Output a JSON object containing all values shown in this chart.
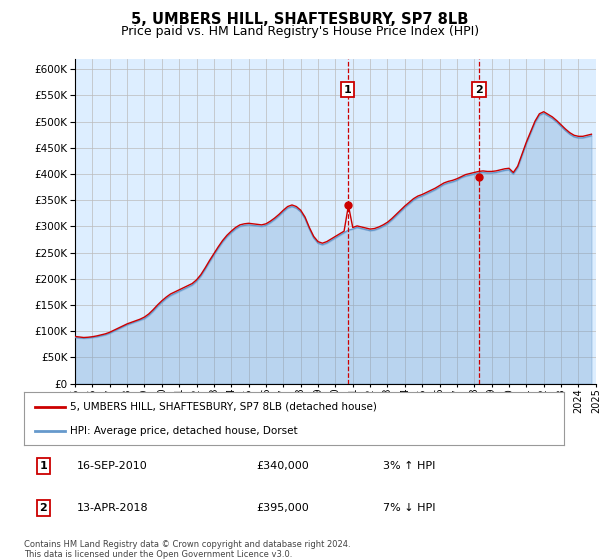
{
  "title": "5, UMBERS HILL, SHAFTESBURY, SP7 8LB",
  "subtitle": "Price paid vs. HM Land Registry's House Price Index (HPI)",
  "title_fontsize": 10.5,
  "subtitle_fontsize": 9.5,
  "ylim": [
    0,
    620000
  ],
  "yticks": [
    0,
    50000,
    100000,
    150000,
    200000,
    250000,
    300000,
    350000,
    400000,
    450000,
    500000,
    550000,
    600000
  ],
  "x_start_year": 1995,
  "x_end_year": 2025,
  "background_color": "#ffffff",
  "grid_color": "#bbbbbb",
  "plot_bg_color": "#ddeeff",
  "red_line_color": "#cc0000",
  "blue_line_color": "#6699cc",
  "sale1_year": 2010.71,
  "sale1_price": 340000,
  "sale2_year": 2018.28,
  "sale2_price": 395000,
  "legend_line1": "5, UMBERS HILL, SHAFTESBURY, SP7 8LB (detached house)",
  "legend_line2": "HPI: Average price, detached house, Dorset",
  "note1_label": "1",
  "note1_date": "16-SEP-2010",
  "note1_price": "£340,000",
  "note1_hpi": "3% ↑ HPI",
  "note2_label": "2",
  "note2_date": "13-APR-2018",
  "note2_price": "£395,000",
  "note2_hpi": "7% ↓ HPI",
  "copyright": "Contains HM Land Registry data © Crown copyright and database right 2024.\nThis data is licensed under the Open Government Licence v3.0.",
  "hpi_data_x": [
    1995.0,
    1995.25,
    1995.5,
    1995.75,
    1996.0,
    1996.25,
    1996.5,
    1996.75,
    1997.0,
    1997.25,
    1997.5,
    1997.75,
    1998.0,
    1998.25,
    1998.5,
    1998.75,
    1999.0,
    1999.25,
    1999.5,
    1999.75,
    2000.0,
    2000.25,
    2000.5,
    2000.75,
    2001.0,
    2001.25,
    2001.5,
    2001.75,
    2002.0,
    2002.25,
    2002.5,
    2002.75,
    2003.0,
    2003.25,
    2003.5,
    2003.75,
    2004.0,
    2004.25,
    2004.5,
    2004.75,
    2005.0,
    2005.25,
    2005.5,
    2005.75,
    2006.0,
    2006.25,
    2006.5,
    2006.75,
    2007.0,
    2007.25,
    2007.5,
    2007.75,
    2008.0,
    2008.25,
    2008.5,
    2008.75,
    2009.0,
    2009.25,
    2009.5,
    2009.75,
    2010.0,
    2010.25,
    2010.5,
    2010.75,
    2011.0,
    2011.25,
    2011.5,
    2011.75,
    2012.0,
    2012.25,
    2012.5,
    2012.75,
    2013.0,
    2013.25,
    2013.5,
    2013.75,
    2014.0,
    2014.25,
    2014.5,
    2014.75,
    2015.0,
    2015.25,
    2015.5,
    2015.75,
    2016.0,
    2016.25,
    2016.5,
    2016.75,
    2017.0,
    2017.25,
    2017.5,
    2017.75,
    2018.0,
    2018.25,
    2018.5,
    2018.75,
    2019.0,
    2019.25,
    2019.5,
    2019.75,
    2020.0,
    2020.25,
    2020.5,
    2020.75,
    2021.0,
    2021.25,
    2021.5,
    2021.75,
    2022.0,
    2022.25,
    2022.5,
    2022.75,
    2023.0,
    2023.25,
    2023.5,
    2023.75,
    2024.0,
    2024.25,
    2024.5,
    2024.75
  ],
  "hpi_data_y": [
    88000,
    87000,
    86500,
    87000,
    88000,
    89000,
    91000,
    93000,
    96000,
    100000,
    104000,
    108000,
    112000,
    115000,
    118000,
    121000,
    124000,
    130000,
    138000,
    147000,
    155000,
    162000,
    168000,
    172000,
    176000,
    180000,
    184000,
    188000,
    195000,
    205000,
    218000,
    232000,
    245000,
    258000,
    270000,
    280000,
    288000,
    295000,
    300000,
    302000,
    303000,
    302000,
    301000,
    300000,
    302000,
    307000,
    313000,
    320000,
    328000,
    335000,
    338000,
    335000,
    328000,
    315000,
    295000,
    278000,
    268000,
    265000,
    268000,
    273000,
    278000,
    283000,
    288000,
    293000,
    295000,
    298000,
    296000,
    294000,
    292000,
    293000,
    296000,
    300000,
    305000,
    312000,
    320000,
    328000,
    336000,
    343000,
    350000,
    355000,
    358000,
    362000,
    366000,
    370000,
    375000,
    380000,
    383000,
    385000,
    388000,
    393000,
    396000,
    398000,
    400000,
    402000,
    403000,
    402000,
    402000,
    403000,
    405000,
    407000,
    408000,
    400000,
    412000,
    435000,
    458000,
    478000,
    498000,
    512000,
    516000,
    511000,
    506000,
    499000,
    491000,
    483000,
    476000,
    471000,
    469000,
    469000,
    471000,
    473000
  ],
  "red_data_x": [
    1995.0,
    1995.25,
    1995.5,
    1995.75,
    1996.0,
    1996.25,
    1996.5,
    1996.75,
    1997.0,
    1997.25,
    1997.5,
    1997.75,
    1998.0,
    1998.25,
    1998.5,
    1998.75,
    1999.0,
    1999.25,
    1999.5,
    1999.75,
    2000.0,
    2000.25,
    2000.5,
    2000.75,
    2001.0,
    2001.25,
    2001.5,
    2001.75,
    2002.0,
    2002.25,
    2002.5,
    2002.75,
    2003.0,
    2003.25,
    2003.5,
    2003.75,
    2004.0,
    2004.25,
    2004.5,
    2004.75,
    2005.0,
    2005.25,
    2005.5,
    2005.75,
    2006.0,
    2006.25,
    2006.5,
    2006.75,
    2007.0,
    2007.25,
    2007.5,
    2007.75,
    2008.0,
    2008.25,
    2008.5,
    2008.75,
    2009.0,
    2009.25,
    2009.5,
    2009.75,
    2010.0,
    2010.25,
    2010.5,
    2010.75,
    2011.0,
    2011.25,
    2011.5,
    2011.75,
    2012.0,
    2012.25,
    2012.5,
    2012.75,
    2013.0,
    2013.25,
    2013.5,
    2013.75,
    2014.0,
    2014.25,
    2014.5,
    2014.75,
    2015.0,
    2015.25,
    2015.5,
    2015.75,
    2016.0,
    2016.25,
    2016.5,
    2016.75,
    2017.0,
    2017.25,
    2017.5,
    2017.75,
    2018.0,
    2018.25,
    2018.5,
    2018.75,
    2019.0,
    2019.25,
    2019.5,
    2019.75,
    2020.0,
    2020.25,
    2020.5,
    2020.75,
    2021.0,
    2021.25,
    2021.5,
    2021.75,
    2022.0,
    2022.25,
    2022.5,
    2022.75,
    2023.0,
    2023.25,
    2023.5,
    2023.75,
    2024.0,
    2024.25,
    2024.5,
    2024.75
  ],
  "red_data_y": [
    90000,
    89000,
    88000,
    88500,
    89500,
    91000,
    93000,
    95000,
    98000,
    102000,
    106000,
    110000,
    114000,
    117000,
    120000,
    123000,
    127000,
    133000,
    141000,
    150000,
    158000,
    165000,
    171000,
    175000,
    179000,
    183000,
    187000,
    191000,
    198000,
    208000,
    221000,
    235000,
    248000,
    261000,
    273000,
    283000,
    291000,
    298000,
    303000,
    305000,
    306000,
    305000,
    304000,
    303000,
    305000,
    310000,
    316000,
    323000,
    331000,
    338000,
    341000,
    338000,
    331000,
    318000,
    298000,
    281000,
    271000,
    268000,
    271000,
    276000,
    281000,
    286000,
    291000,
    340000,
    298000,
    301000,
    299000,
    297000,
    295000,
    296000,
    299000,
    303000,
    308000,
    315000,
    323000,
    331000,
    339000,
    346000,
    353000,
    358000,
    361000,
    365000,
    369000,
    373000,
    378000,
    383000,
    386000,
    388000,
    391000,
    395000,
    399000,
    401000,
    403000,
    405000,
    406000,
    405000,
    405000,
    406000,
    408000,
    410000,
    411000,
    403000,
    415000,
    438000,
    461000,
    481000,
    501000,
    515000,
    519000,
    514000,
    509000,
    502000,
    494000,
    486000,
    479000,
    474000,
    472000,
    472000,
    474000,
    476000
  ]
}
